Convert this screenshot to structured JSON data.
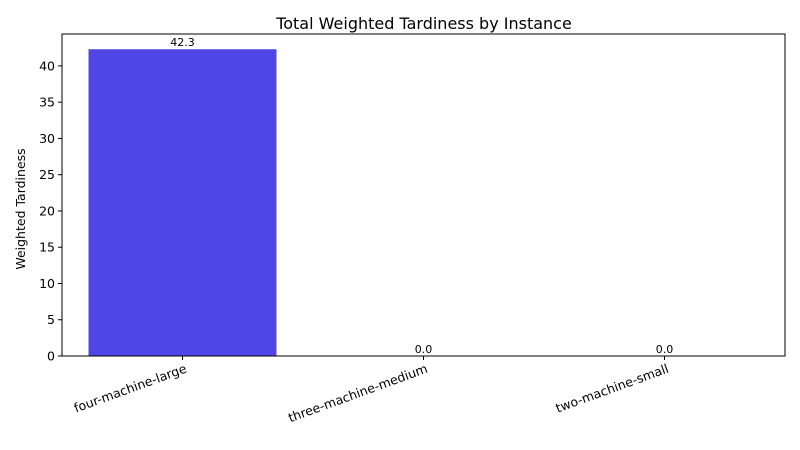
{
  "chart_data": {
    "type": "bar",
    "title": "Total Weighted Tardiness by Instance",
    "xlabel": "",
    "ylabel": "Weighted Tardiness",
    "categories": [
      "four-machine-large",
      "three-machine-medium",
      "two-machine-small"
    ],
    "values": [
      42.3,
      0.0,
      0.0
    ],
    "value_labels": [
      "42.3",
      "0.0",
      "0.0"
    ],
    "ylim": [
      0,
      44.4
    ],
    "yticks": [
      0,
      5,
      10,
      15,
      20,
      25,
      30,
      35,
      40
    ],
    "grid": false,
    "bar_color": "#4f46e5"
  }
}
